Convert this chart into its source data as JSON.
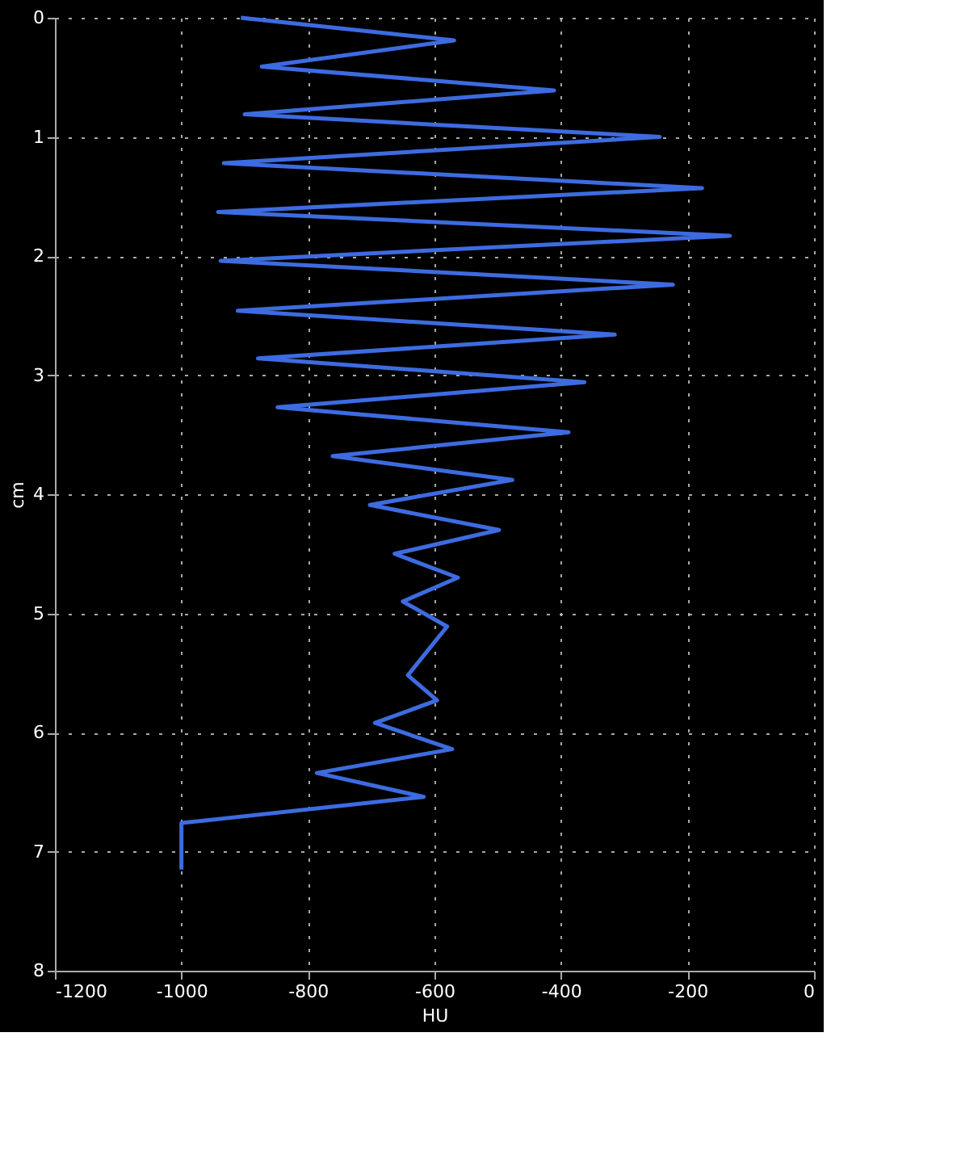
{
  "chart_data": {
    "type": "line",
    "xlabel": "HU",
    "ylabel": "cm",
    "x": [
      -906,
      -569,
      -873,
      -411,
      -900,
      -244,
      -933,
      -177,
      -942,
      -133,
      -938,
      -223,
      -911,
      -315,
      -879,
      -363,
      -848,
      -388,
      -761,
      -477,
      -702,
      -498,
      -663,
      -563,
      -650,
      -580,
      -642,
      -596,
      -694,
      -572,
      -786,
      -617,
      -1000,
      -1000
    ],
    "series": [
      {
        "color": "#3d6be0",
        "values": [
          0,
          0.19,
          0.41,
          0.61,
          0.81,
          1.0,
          1.22,
          1.43,
          1.63,
          1.83,
          2.04,
          2.24,
          2.46,
          2.66,
          2.86,
          3.06,
          3.27,
          3.48,
          3.68,
          3.88,
          4.09,
          4.3,
          4.5,
          4.7,
          4.9,
          5.11,
          5.52,
          5.73,
          5.92,
          6.14,
          6.34,
          6.54,
          6.76,
          7.15
        ]
      }
    ],
    "xlim": [
      -1200,
      0
    ],
    "xticks": [
      -1200,
      -1000,
      -800,
      -600,
      -400,
      -200,
      0
    ],
    "ylim": [
      8,
      0
    ],
    "yticks": [
      0,
      1,
      2,
      3,
      4,
      5,
      6,
      7,
      8
    ],
    "grid": true,
    "marker": "none",
    "line_style": "solid",
    "legend": false
  }
}
